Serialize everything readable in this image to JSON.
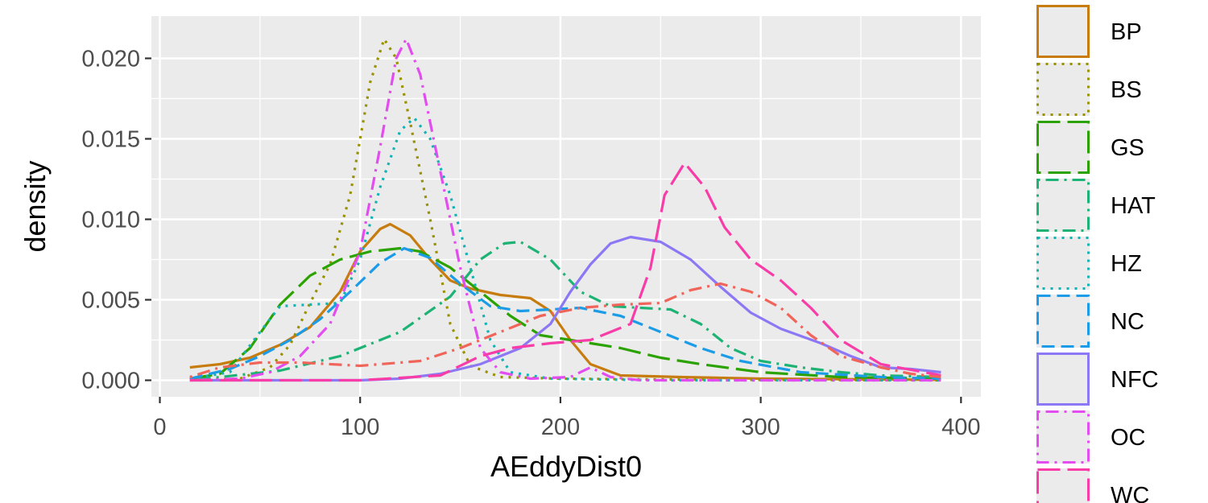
{
  "chart_data": {
    "type": "line",
    "xlabel": "AEddyDist0",
    "ylabel": "density",
    "xlim": [
      0,
      400
    ],
    "ylim": [
      -0.0008,
      0.0225
    ],
    "x_ticks": [
      0,
      100,
      200,
      300,
      400
    ],
    "x_tick_labels": [
      "0",
      "100",
      "200",
      "300",
      "400"
    ],
    "y_ticks": [
      0,
      0.005,
      0.01,
      0.015,
      0.02
    ],
    "y_tick_labels": [
      "0.000",
      "0.005",
      "0.010",
      "0.015",
      "0.020"
    ],
    "grid": true,
    "legend_placement": "right",
    "series": [
      {
        "name": "BP",
        "color": "#C77C0F",
        "dash": "solid",
        "points": [
          [
            15,
            0.0008
          ],
          [
            30,
            0.001
          ],
          [
            45,
            0.0014
          ],
          [
            60,
            0.0022
          ],
          [
            75,
            0.0033
          ],
          [
            90,
            0.0055
          ],
          [
            100,
            0.008
          ],
          [
            110,
            0.0094
          ],
          [
            115,
            0.0097
          ],
          [
            125,
            0.009
          ],
          [
            135,
            0.0075
          ],
          [
            145,
            0.0062
          ],
          [
            155,
            0.0057
          ],
          [
            170,
            0.0053
          ],
          [
            185,
            0.0051
          ],
          [
            195,
            0.0043
          ],
          [
            205,
            0.0025
          ],
          [
            215,
            0.001
          ],
          [
            230,
            0.0003
          ],
          [
            260,
            0.0002
          ],
          [
            300,
            0.0001
          ],
          [
            360,
            5e-05
          ],
          [
            390,
            3e-05
          ]
        ]
      },
      {
        "name": "BS",
        "color": "#999100",
        "dash": "dot",
        "points": [
          [
            20,
            0.0
          ],
          [
            40,
            0.0001
          ],
          [
            55,
            0.0008
          ],
          [
            65,
            0.0022
          ],
          [
            75,
            0.0048
          ],
          [
            85,
            0.0072
          ],
          [
            95,
            0.0115
          ],
          [
            105,
            0.0185
          ],
          [
            112,
            0.0212
          ],
          [
            118,
            0.02
          ],
          [
            125,
            0.016
          ],
          [
            135,
            0.01
          ],
          [
            145,
            0.0035
          ],
          [
            155,
            0.0009
          ],
          [
            170,
            0.0002
          ],
          [
            200,
            0.0001
          ],
          [
            250,
            5e-05
          ],
          [
            300,
            3e-05
          ],
          [
            390,
            0.0
          ]
        ]
      },
      {
        "name": "GS",
        "color": "#2BA200",
        "dash": "longdash",
        "points": [
          [
            15,
            0.0001
          ],
          [
            30,
            0.0004
          ],
          [
            45,
            0.002
          ],
          [
            60,
            0.0047
          ],
          [
            75,
            0.0065
          ],
          [
            90,
            0.0075
          ],
          [
            105,
            0.008
          ],
          [
            120,
            0.0082
          ],
          [
            130,
            0.008
          ],
          [
            145,
            0.007
          ],
          [
            160,
            0.0055
          ],
          [
            175,
            0.004
          ],
          [
            190,
            0.0028
          ],
          [
            210,
            0.0024
          ],
          [
            230,
            0.002
          ],
          [
            250,
            0.0014
          ],
          [
            270,
            0.001
          ],
          [
            300,
            0.0005
          ],
          [
            340,
            0.0002
          ],
          [
            390,
            0.0001
          ]
        ]
      },
      {
        "name": "HAT",
        "color": "#1DB374",
        "dash": "dotdash",
        "points": [
          [
            15,
            0.0
          ],
          [
            60,
            0.0006
          ],
          [
            90,
            0.0015
          ],
          [
            120,
            0.003
          ],
          [
            145,
            0.0052
          ],
          [
            160,
            0.0075
          ],
          [
            172,
            0.0085
          ],
          [
            180,
            0.0086
          ],
          [
            195,
            0.0075
          ],
          [
            210,
            0.0055
          ],
          [
            225,
            0.0046
          ],
          [
            240,
            0.0045
          ],
          [
            255,
            0.0044
          ],
          [
            270,
            0.0035
          ],
          [
            285,
            0.002
          ],
          [
            300,
            0.0012
          ],
          [
            320,
            0.0008
          ],
          [
            340,
            0.0005
          ],
          [
            360,
            0.0003
          ],
          [
            390,
            0.0002
          ]
        ]
      },
      {
        "name": "HZ",
        "color": "#14B2B5",
        "dash": "dot",
        "points": [
          [
            15,
            0.0001
          ],
          [
            35,
            0.0005
          ],
          [
            50,
            0.003
          ],
          [
            60,
            0.0046
          ],
          [
            75,
            0.0047
          ],
          [
            90,
            0.0048
          ],
          [
            100,
            0.0075
          ],
          [
            110,
            0.012
          ],
          [
            120,
            0.0155
          ],
          [
            127,
            0.0163
          ],
          [
            135,
            0.015
          ],
          [
            145,
            0.0115
          ],
          [
            155,
            0.007
          ],
          [
            165,
            0.0025
          ],
          [
            175,
            0.0005
          ],
          [
            195,
            0.0001
          ],
          [
            250,
            0.0
          ],
          [
            390,
            0.0
          ]
        ]
      },
      {
        "name": "NC",
        "color": "#1C9CE6",
        "dash": "dash",
        "points": [
          [
            15,
            0.0001
          ],
          [
            35,
            0.0007
          ],
          [
            50,
            0.0015
          ],
          [
            65,
            0.0025
          ],
          [
            80,
            0.0038
          ],
          [
            95,
            0.0055
          ],
          [
            110,
            0.0073
          ],
          [
            122,
            0.0082
          ],
          [
            135,
            0.0076
          ],
          [
            150,
            0.006
          ],
          [
            165,
            0.0046
          ],
          [
            180,
            0.0043
          ],
          [
            195,
            0.0044
          ],
          [
            210,
            0.0045
          ],
          [
            230,
            0.004
          ],
          [
            250,
            0.003
          ],
          [
            270,
            0.002
          ],
          [
            290,
            0.0012
          ],
          [
            320,
            0.0005
          ],
          [
            360,
            0.0002
          ],
          [
            390,
            0.0001
          ]
        ]
      },
      {
        "name": "NFC",
        "color": "#8C78F4",
        "dash": "solid",
        "points": [
          [
            15,
            0.0
          ],
          [
            100,
            0.0
          ],
          [
            120,
            0.0001
          ],
          [
            140,
            0.0004
          ],
          [
            160,
            0.001
          ],
          [
            180,
            0.002
          ],
          [
            195,
            0.0035
          ],
          [
            205,
            0.0055
          ],
          [
            215,
            0.0072
          ],
          [
            225,
            0.0085
          ],
          [
            235,
            0.0089
          ],
          [
            250,
            0.0086
          ],
          [
            265,
            0.0075
          ],
          [
            280,
            0.0058
          ],
          [
            295,
            0.0042
          ],
          [
            310,
            0.0032
          ],
          [
            330,
            0.0023
          ],
          [
            345,
            0.0015
          ],
          [
            360,
            0.0008
          ],
          [
            375,
            0.0007
          ],
          [
            390,
            0.0005
          ]
        ]
      },
      {
        "name": "OC",
        "color": "#E34CEF",
        "dash": "dotdash",
        "points": [
          [
            15,
            0.0
          ],
          [
            40,
            0.0001
          ],
          [
            55,
            0.0005
          ],
          [
            70,
            0.0015
          ],
          [
            85,
            0.0035
          ],
          [
            100,
            0.008
          ],
          [
            110,
            0.0145
          ],
          [
            118,
            0.02
          ],
          [
            123,
            0.0212
          ],
          [
            130,
            0.019
          ],
          [
            140,
            0.013
          ],
          [
            150,
            0.007
          ],
          [
            160,
            0.002
          ],
          [
            170,
            0.0005
          ],
          [
            185,
            0.0001
          ],
          [
            205,
            0.0002
          ],
          [
            215,
            0.0008
          ],
          [
            225,
            0.0002
          ],
          [
            240,
            0.0
          ],
          [
            390,
            0.0
          ]
        ]
      },
      {
        "name": "WC",
        "color": "#F83CA8",
        "dash": "longdash",
        "points": [
          [
            15,
            0.0
          ],
          [
            100,
            0.0
          ],
          [
            140,
            0.0003
          ],
          [
            160,
            0.0015
          ],
          [
            175,
            0.002
          ],
          [
            195,
            0.0023
          ],
          [
            215,
            0.0025
          ],
          [
            235,
            0.0035
          ],
          [
            245,
            0.007
          ],
          [
            252,
            0.0115
          ],
          [
            262,
            0.0135
          ],
          [
            272,
            0.012
          ],
          [
            282,
            0.0095
          ],
          [
            295,
            0.0075
          ],
          [
            310,
            0.0062
          ],
          [
            325,
            0.0045
          ],
          [
            340,
            0.0025
          ],
          [
            360,
            0.001
          ],
          [
            390,
            0.0003
          ]
        ]
      },
      {
        "name": "",
        "color": "#F0645A",
        "dash": "dotdash",
        "points": [
          [
            15,
            0.0002
          ],
          [
            30,
            0.0008
          ],
          [
            50,
            0.0011
          ],
          [
            70,
            0.0011
          ],
          [
            100,
            0.0009
          ],
          [
            130,
            0.0012
          ],
          [
            150,
            0.002
          ],
          [
            170,
            0.003
          ],
          [
            190,
            0.004
          ],
          [
            210,
            0.0045
          ],
          [
            230,
            0.0047
          ],
          [
            250,
            0.0048
          ],
          [
            265,
            0.0056
          ],
          [
            280,
            0.006
          ],
          [
            295,
            0.0055
          ],
          [
            310,
            0.0045
          ],
          [
            325,
            0.0028
          ],
          [
            340,
            0.0015
          ],
          [
            360,
            0.0008
          ],
          [
            375,
            0.0004
          ],
          [
            390,
            0.0002
          ]
        ]
      }
    ]
  }
}
